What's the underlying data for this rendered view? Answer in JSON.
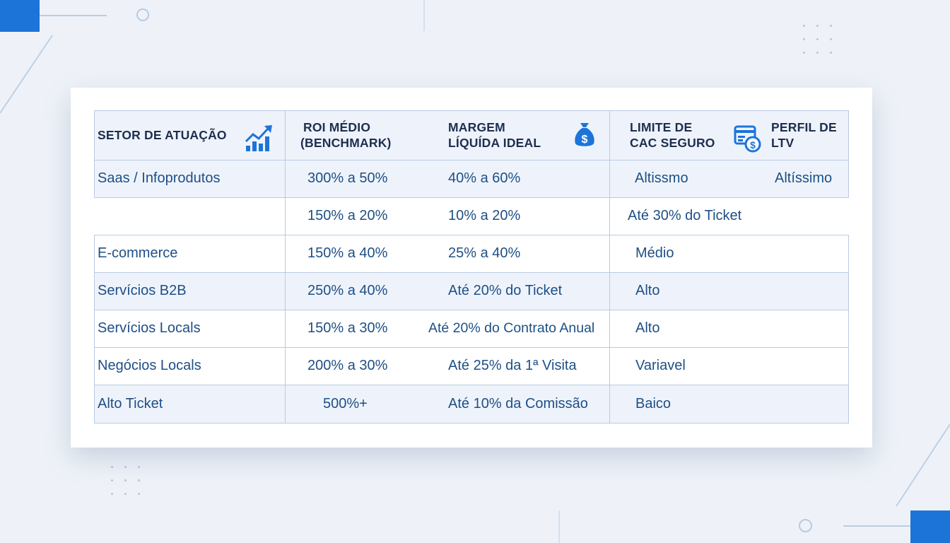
{
  "table": {
    "headers": {
      "sector": "SETOR DE ATUAÇÃO",
      "roi_line1": "ROI MÉDIO",
      "roi_line2": "(BENCHMARK)",
      "margin_line1": "MARGEM",
      "margin_line2": "LÍQUÍDA IDEAL",
      "cac_line1": "LIMITE DE",
      "cac_line2": "CAC SEGURO",
      "ltv_line1": "PERFIL DE",
      "ltv_line2": "LTV"
    },
    "icons": {
      "sector": "chart-up-icon",
      "margin": "money-bag-icon",
      "cac": "card-dollar-icon"
    },
    "rows": [
      {
        "sector": "Saas / Infoprodutos",
        "roi": "300% a 50%",
        "margin": "40% a 60%",
        "cac": "Altissmo",
        "ltv": "Altíssimo"
      },
      {
        "sector": "",
        "roi": "150% a 20%",
        "margin": "10% a 20%",
        "cac": "Até 30% do Ticket",
        "ltv": ""
      },
      {
        "sector": "E-commerce",
        "roi": "150% a 40%",
        "margin": "25% a 40%",
        "cac": "Médio",
        "ltv": ""
      },
      {
        "sector": "Servícios B2B",
        "roi": "250% a 40%",
        "margin": "Até 20% do Ticket",
        "cac": "Alto",
        "ltv": ""
      },
      {
        "sector": "Servícios Locals",
        "roi": "150% a 30%",
        "margin": "Até 20% do Contrato Anual",
        "cac": "Alto",
        "ltv": ""
      },
      {
        "sector": "Negócios Locals",
        "roi": "200% a 30%",
        "margin": "Até 25% da 1ª Visita",
        "cac": "Variavel",
        "ltv": ""
      },
      {
        "sector": "Alto Ticket",
        "roi": "500%+",
        "margin": "Até 10% da Comissão",
        "cac": "Baico",
        "ltv": ""
      }
    ]
  },
  "colors": {
    "accent": "#1d74d8",
    "text": "#1e4f86",
    "header_text": "#1d2f4e",
    "row_tint": "#eef3fb",
    "grid": "#b9cbe2"
  }
}
